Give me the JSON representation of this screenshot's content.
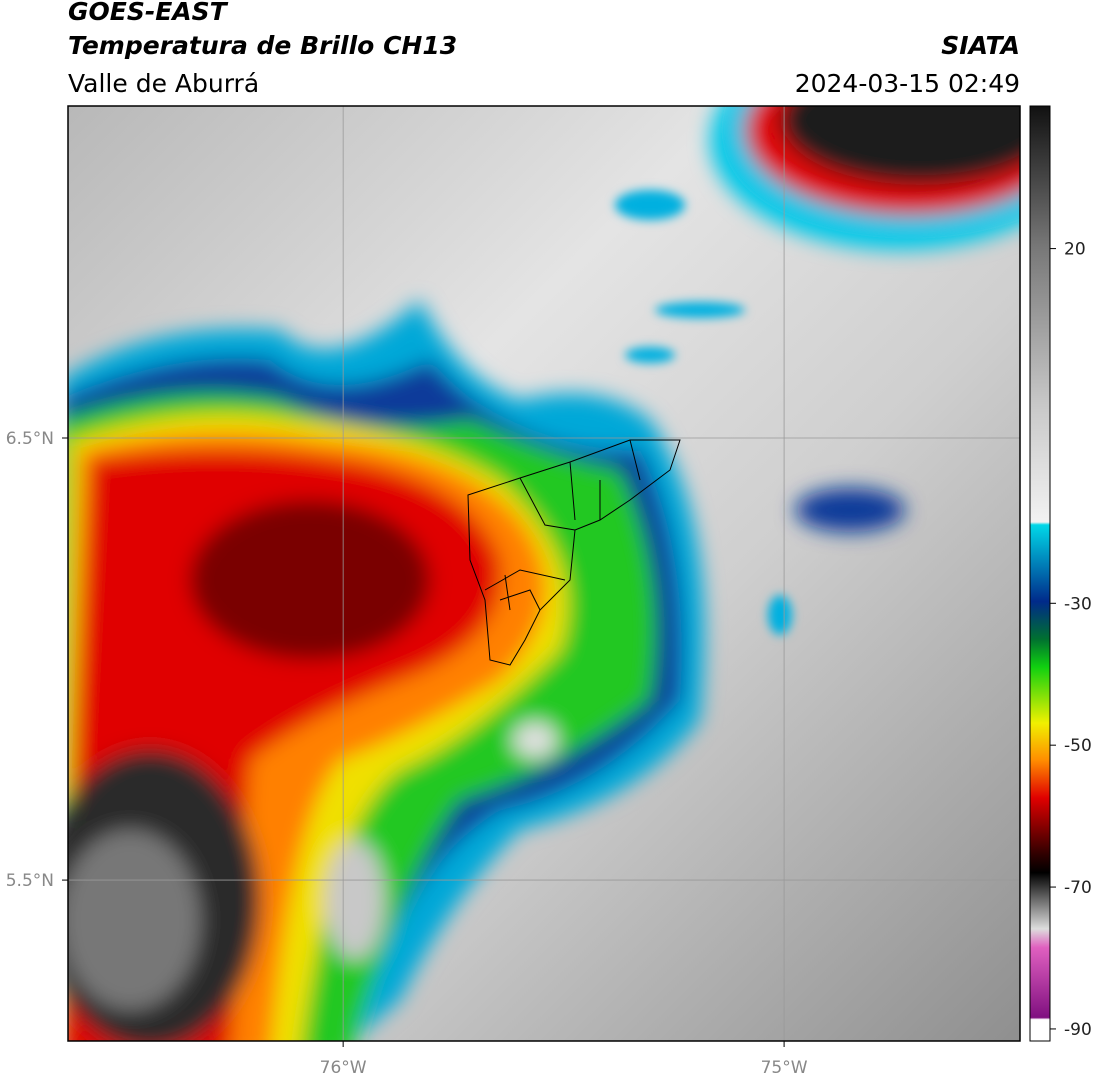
{
  "header": {
    "title": "GOES-EAST",
    "subtitle": "Temperatura de Brillo CH13",
    "region": "Valle de Aburrá",
    "source": "SIATA",
    "datetime": "2024-03-15 02:49"
  },
  "map": {
    "lonlim": [
      -76.624,
      -74.465
    ],
    "latlim": [
      5.136,
      7.251
    ],
    "lon_ticks": [
      {
        "value": -76,
        "label": "76°W"
      },
      {
        "value": -75,
        "label": "75°W"
      }
    ],
    "lat_ticks": [
      {
        "value": 6.5,
        "label": "6.5°N"
      },
      {
        "value": 5.5,
        "label": "5.5°N"
      }
    ],
    "grid": true
  },
  "colorbar": {
    "lim": [
      -91.7,
      40.1
    ],
    "ticks": [
      20,
      -30,
      -50,
      -70,
      -90
    ]
  }
}
